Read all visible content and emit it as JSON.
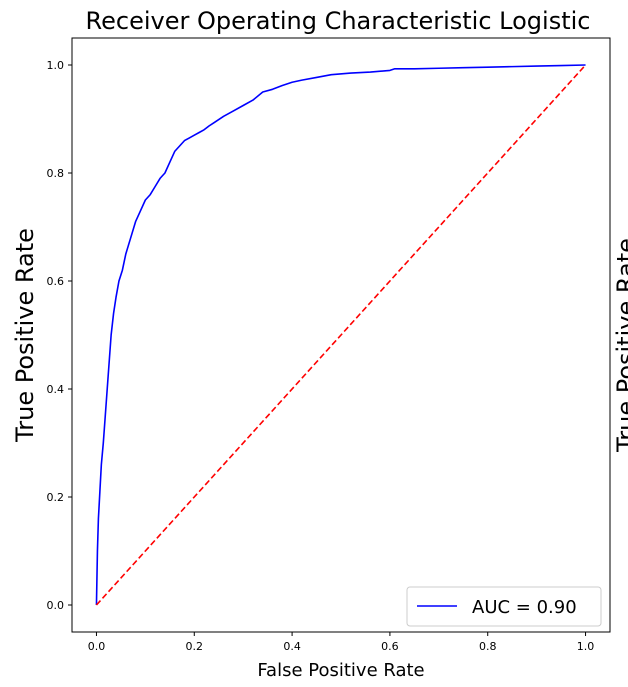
{
  "chart_data": {
    "type": "line",
    "title": "Receiver Operating Characteristic Logistic",
    "xlabel": "False Positive Rate",
    "ylabel": "True Positive Rate",
    "xlim": [
      -0.05,
      1.05
    ],
    "ylim": [
      -0.05,
      1.05
    ],
    "xticks": [
      "0.0",
      "0.2",
      "0.4",
      "0.6",
      "0.8",
      "1.0"
    ],
    "yticks": [
      "0.0",
      "0.2",
      "0.4",
      "0.6",
      "0.8",
      "1.0"
    ],
    "grid": false,
    "legend": {
      "position": "bottom-right",
      "entries": [
        "AUC = 0.90"
      ]
    },
    "series": [
      {
        "name": "AUC = 0.90",
        "color": "#0000ff",
        "style": "solid",
        "x": [
          0.0,
          0.002,
          0.004,
          0.007,
          0.01,
          0.014,
          0.018,
          0.022,
          0.026,
          0.03,
          0.035,
          0.04,
          0.046,
          0.053,
          0.06,
          0.07,
          0.08,
          0.09,
          0.1,
          0.11,
          0.12,
          0.13,
          0.14,
          0.15,
          0.16,
          0.17,
          0.18,
          0.19,
          0.2,
          0.21,
          0.22,
          0.23,
          0.24,
          0.26,
          0.28,
          0.3,
          0.32,
          0.34,
          0.36,
          0.38,
          0.4,
          0.42,
          0.45,
          0.48,
          0.52,
          0.56,
          0.6,
          0.61,
          0.65,
          0.7,
          0.75,
          0.8,
          0.85,
          0.9,
          0.95,
          1.0
        ],
        "y": [
          0.0,
          0.1,
          0.16,
          0.21,
          0.26,
          0.3,
          0.35,
          0.4,
          0.45,
          0.5,
          0.54,
          0.57,
          0.6,
          0.62,
          0.65,
          0.68,
          0.71,
          0.73,
          0.75,
          0.76,
          0.775,
          0.79,
          0.8,
          0.82,
          0.84,
          0.85,
          0.86,
          0.865,
          0.87,
          0.875,
          0.88,
          0.887,
          0.893,
          0.905,
          0.915,
          0.925,
          0.935,
          0.95,
          0.955,
          0.962,
          0.968,
          0.972,
          0.977,
          0.982,
          0.985,
          0.987,
          0.99,
          0.993,
          0.993,
          0.994,
          0.995,
          0.996,
          0.997,
          0.998,
          0.999,
          1.0
        ]
      },
      {
        "color": "#ff0000",
        "style": "dashed",
        "x": [
          0.0,
          1.0
        ],
        "y": [
          0.0,
          1.0
        ]
      }
    ]
  },
  "edge_clipped_text": "True Positive Rate"
}
